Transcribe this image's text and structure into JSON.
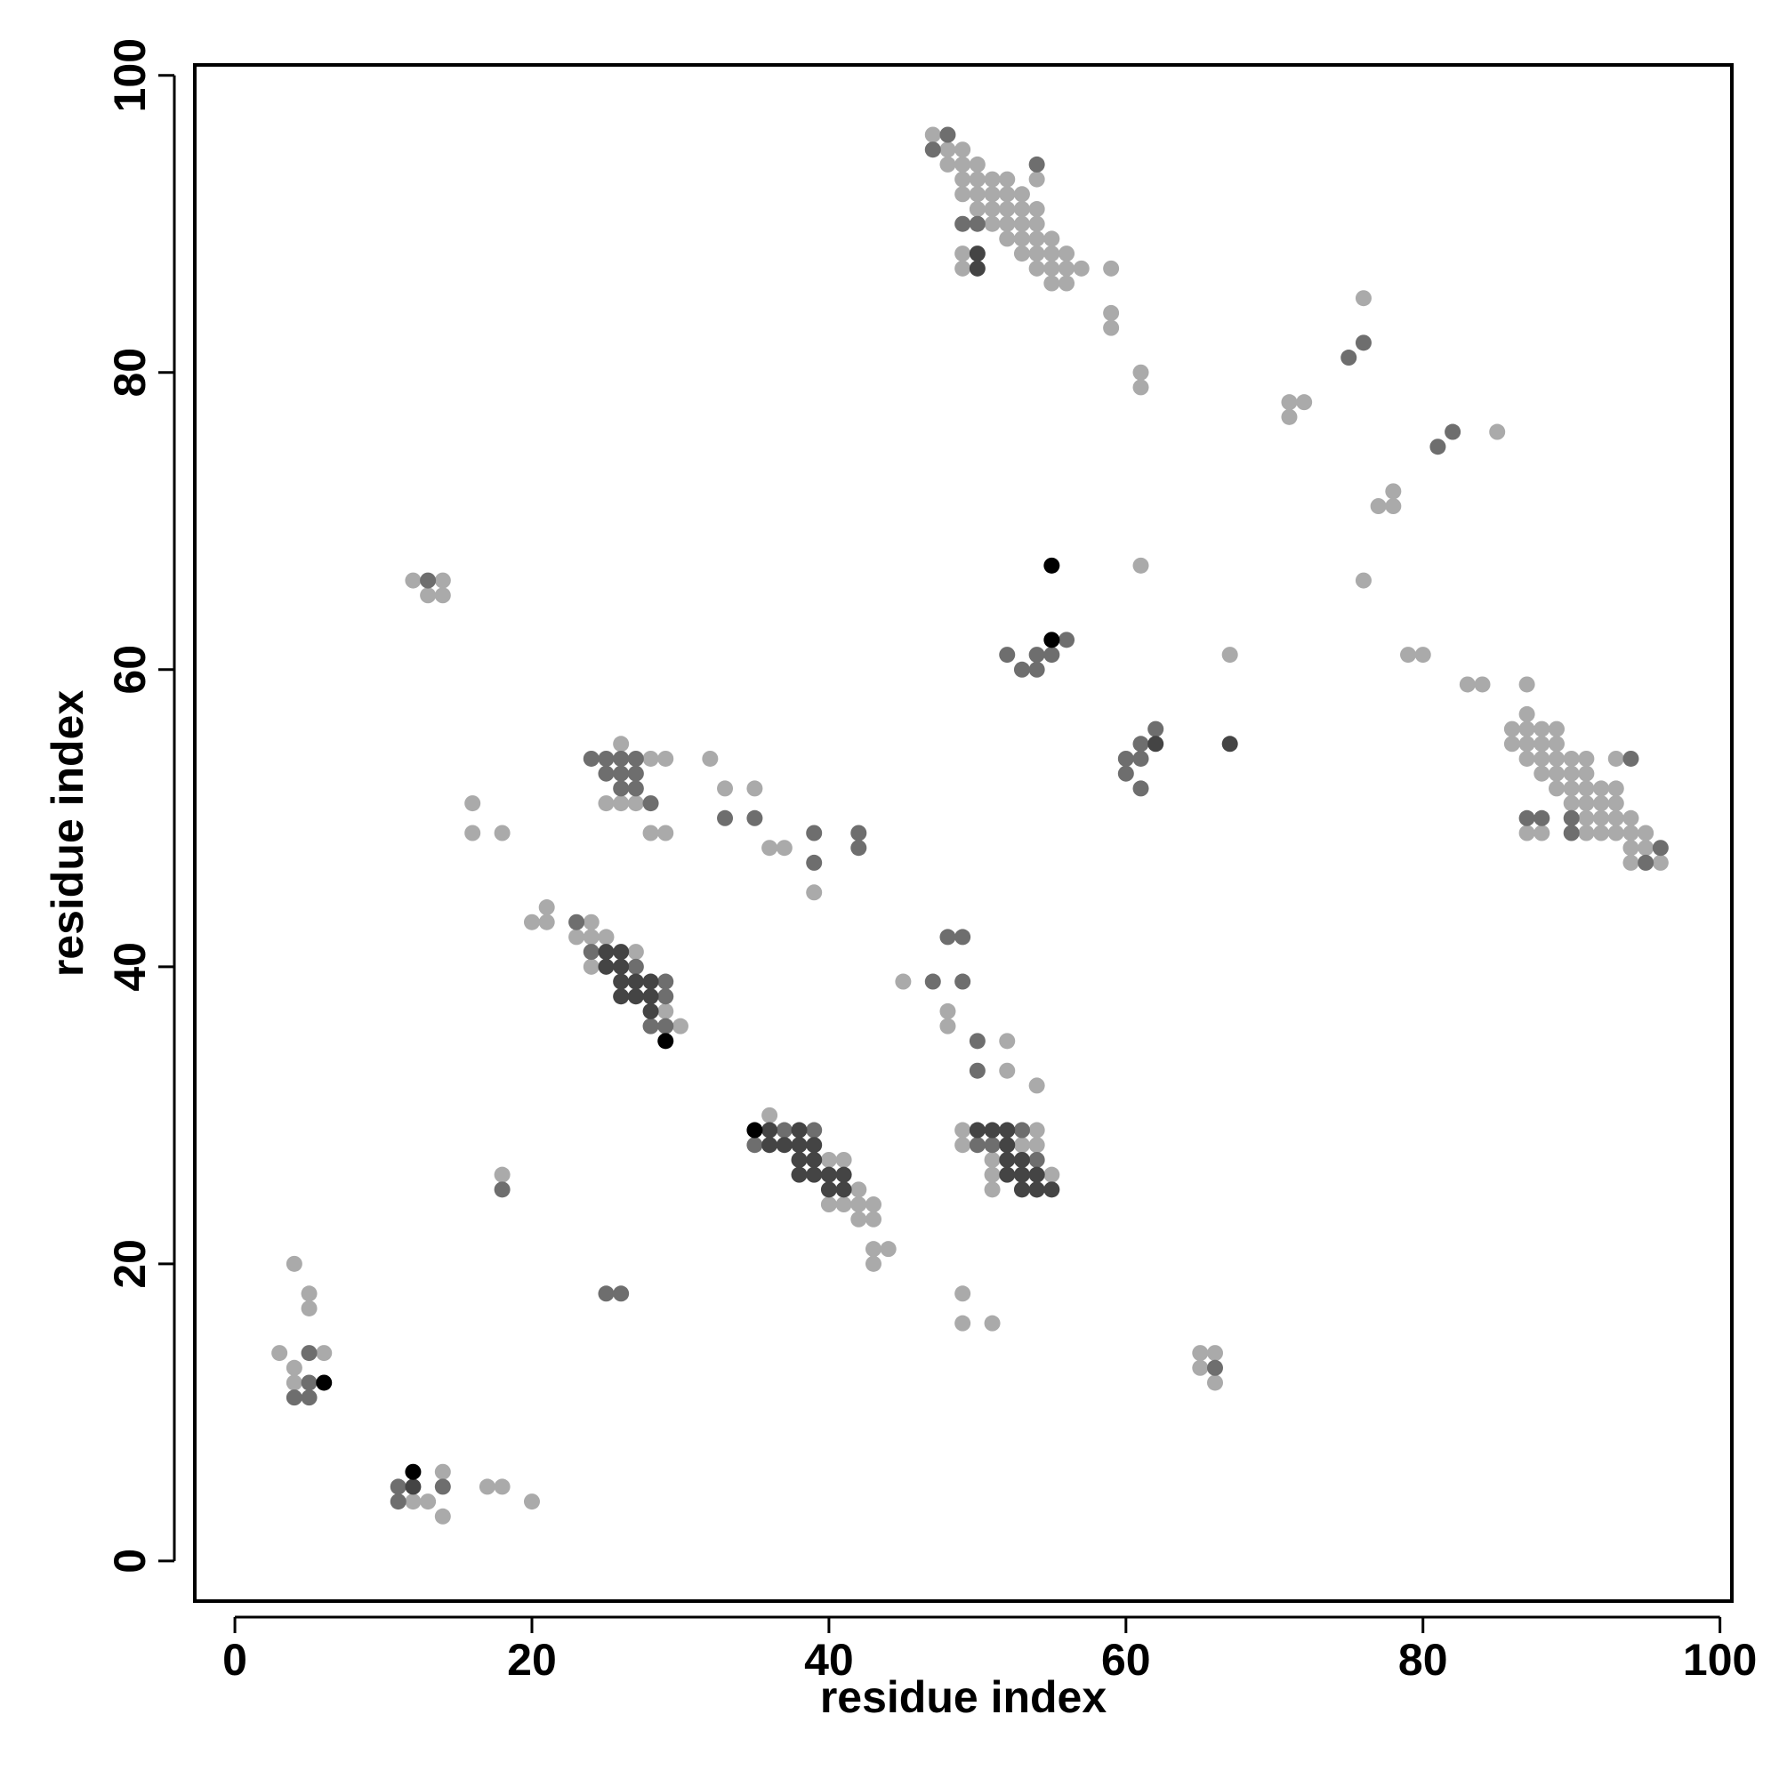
{
  "chart_data": {
    "type": "scatter",
    "x_label": "residue index",
    "y_label": "residue index",
    "xlim": [
      -2.7,
      100.8
    ],
    "ylim": [
      -2.7,
      100.7
    ],
    "xticks": [
      0,
      20,
      40,
      60,
      80,
      100
    ],
    "yticks": [
      0,
      20,
      40,
      60,
      80,
      100
    ],
    "series": [
      {
        "color": "#aaaaaa",
        "x": [
          47,
          48,
          49,
          48,
          49,
          50,
          49,
          50,
          51,
          52,
          54,
          49,
          50,
          51,
          52,
          53,
          50,
          51,
          52,
          53,
          54,
          51,
          52,
          53,
          54,
          52,
          53,
          54,
          55,
          49,
          53,
          54,
          55,
          56,
          49,
          54,
          55,
          56,
          57,
          59,
          55,
          56,
          76,
          59,
          59,
          61,
          61,
          71,
          72,
          71,
          85,
          78,
          77,
          78,
          61,
          76,
          12,
          14,
          13,
          14,
          67,
          79,
          80,
          83,
          84,
          87,
          87,
          86,
          87,
          88,
          89,
          86,
          87,
          88,
          89,
          26,
          28,
          29,
          32,
          87,
          88,
          89,
          90,
          91,
          93,
          88,
          89,
          90,
          91,
          33,
          35,
          89,
          90,
          91,
          92,
          93,
          16,
          25,
          26,
          27,
          90,
          91,
          92,
          93,
          91,
          92,
          93,
          94,
          16,
          18,
          28,
          29,
          87,
          88,
          91,
          92,
          93,
          94,
          95,
          36,
          37,
          94,
          95,
          94,
          96,
          39,
          21,
          20,
          21,
          24,
          23,
          24,
          25,
          27,
          24,
          45,
          29,
          48,
          30,
          48,
          52,
          52,
          54,
          36,
          49,
          54,
          49,
          53,
          54,
          40,
          41,
          51,
          51,
          55,
          18,
          42,
          51,
          40,
          41,
          42,
          43,
          42,
          43,
          43,
          44,
          4,
          43,
          5,
          49,
          5,
          49,
          51,
          3,
          6,
          65,
          66,
          4,
          65,
          4,
          66,
          14,
          17,
          18,
          12,
          13,
          20,
          14
        ],
        "y": [
          96,
          95,
          95,
          94,
          94,
          94,
          93,
          93,
          93,
          93,
          93,
          92,
          92,
          92,
          92,
          92,
          91,
          91,
          91,
          91,
          91,
          90,
          90,
          90,
          90,
          89,
          89,
          89,
          89,
          88,
          88,
          88,
          88,
          88,
          87,
          87,
          87,
          87,
          87,
          87,
          86,
          86,
          85,
          84,
          83,
          80,
          79,
          78,
          78,
          77,
          76,
          72,
          71,
          71,
          67,
          66,
          66,
          66,
          65,
          65,
          61,
          61,
          61,
          59,
          59,
          59,
          57,
          56,
          56,
          56,
          56,
          55,
          55,
          55,
          55,
          55,
          54,
          54,
          54,
          54,
          54,
          54,
          54,
          54,
          54,
          53,
          53,
          53,
          53,
          52,
          52,
          52,
          52,
          52,
          52,
          52,
          51,
          51,
          51,
          51,
          51,
          51,
          51,
          51,
          50,
          50,
          50,
          50,
          49,
          49,
          49,
          49,
          49,
          49,
          49,
          49,
          49,
          49,
          49,
          48,
          48,
          48,
          48,
          47,
          47,
          45,
          44,
          43,
          43,
          43,
          42,
          42,
          42,
          41,
          40,
          39,
          37,
          37,
          36,
          36,
          35,
          33,
          32,
          30,
          29,
          29,
          28,
          28,
          28,
          27,
          27,
          27,
          26,
          26,
          26,
          25,
          25,
          24,
          24,
          24,
          24,
          23,
          23,
          21,
          21,
          20,
          20,
          18,
          18,
          17,
          16,
          16,
          14,
          14,
          14,
          14,
          13,
          13,
          12,
          12,
          6,
          5,
          5,
          4,
          4,
          4,
          3
        ]
      },
      {
        "color": "#6e6e6e",
        "x": [
          48,
          47,
          54,
          49,
          50,
          76,
          75,
          82,
          81,
          13,
          56,
          52,
          54,
          55,
          53,
          54,
          62,
          61,
          60,
          61,
          24,
          25,
          26,
          27,
          94,
          25,
          26,
          27,
          60,
          26,
          27,
          61,
          28,
          33,
          35,
          87,
          88,
          90,
          39,
          42,
          90,
          42,
          96,
          39,
          95,
          23,
          48,
          49,
          24,
          27,
          29,
          47,
          49,
          29,
          28,
          29,
          50,
          50,
          37,
          39,
          53,
          35,
          50,
          51,
          54,
          54,
          18,
          25,
          26,
          5,
          66,
          5,
          4,
          5,
          11,
          14,
          11
        ],
        "y": [
          96,
          95,
          94,
          90,
          90,
          82,
          81,
          76,
          75,
          66,
          62,
          61,
          61,
          61,
          60,
          60,
          56,
          55,
          54,
          54,
          54,
          54,
          54,
          54,
          54,
          53,
          53,
          53,
          53,
          52,
          52,
          52,
          51,
          50,
          50,
          50,
          50,
          50,
          49,
          49,
          49,
          48,
          48,
          47,
          47,
          43,
          42,
          42,
          41,
          40,
          39,
          39,
          39,
          38,
          36,
          36,
          35,
          33,
          29,
          29,
          29,
          28,
          28,
          28,
          27,
          25,
          25,
          18,
          18,
          14,
          13,
          12,
          11,
          11,
          5,
          5,
          4
        ]
      },
      {
        "color": "#444444",
        "x": [
          50,
          50,
          62,
          67,
          25,
          26,
          25,
          26,
          26,
          27,
          28,
          26,
          27,
          28,
          28,
          36,
          38,
          50,
          51,
          52,
          36,
          37,
          38,
          39,
          52,
          38,
          39,
          52,
          53,
          38,
          39,
          40,
          41,
          52,
          53,
          54,
          40,
          41,
          53,
          54,
          55,
          12
        ],
        "y": [
          88,
          87,
          55,
          55,
          41,
          41,
          40,
          40,
          39,
          39,
          39,
          38,
          38,
          38,
          37,
          29,
          29,
          29,
          29,
          29,
          28,
          28,
          28,
          28,
          28,
          27,
          27,
          27,
          27,
          26,
          26,
          26,
          26,
          26,
          26,
          26,
          25,
          25,
          25,
          25,
          25,
          5
        ]
      },
      {
        "color": "#000000",
        "x": [
          55,
          55,
          29,
          35,
          6,
          12
        ],
        "y": [
          67,
          62,
          35,
          29,
          12,
          6
        ]
      }
    ]
  }
}
